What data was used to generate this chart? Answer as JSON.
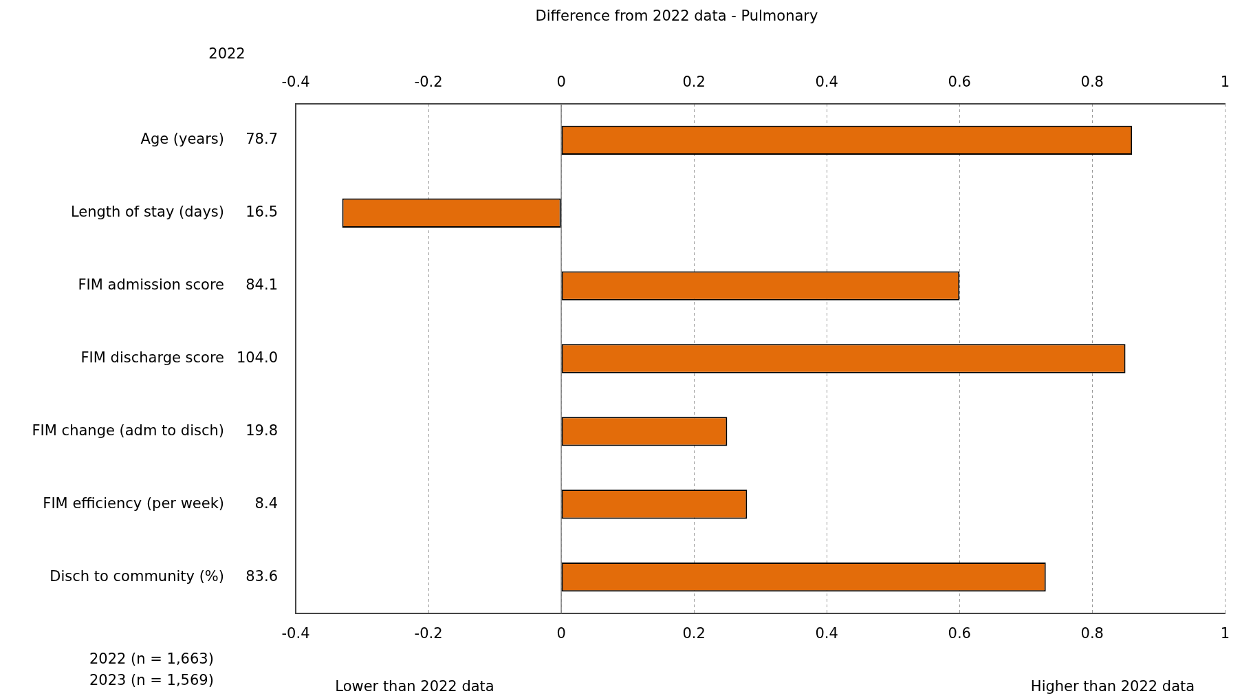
{
  "chart_data": {
    "type": "bar",
    "orientation": "horizontal",
    "title": "Difference from 2022 data - Pulmonary",
    "categories": [
      "Age (years)",
      "Length of stay (days)",
      "FIM admission score",
      "FIM discharge score",
      "FIM change (adm to disch)",
      "FIM efficiency (per week)",
      "Disch to community (%)"
    ],
    "values": [
      0.86,
      -0.33,
      0.6,
      0.85,
      0.25,
      0.28,
      0.73
    ],
    "color": "#e36c0a",
    "xlim": [
      -0.4,
      1
    ],
    "xticks": [
      -0.4,
      -0.2,
      0,
      0.2,
      0.4,
      0.6,
      0.8,
      1
    ],
    "x2lim": [
      -0.4,
      1
    ],
    "x2ticks": [
      -0.4,
      -0.2,
      0,
      0.2,
      0.4,
      0.6,
      0.8,
      1
    ],
    "grid": "x",
    "legend": false,
    "ref_lines": [
      {
        "axis": "x",
        "value": 0,
        "color": "#808080"
      }
    ],
    "annotations": [
      "2022",
      "78.7",
      "16.5",
      "84.1",
      "104.0",
      "19.8",
      "8.4",
      "83.6",
      "2022 (n = 1,663)",
      "2023 (n = 1,569)",
      "Lower than 2022 data",
      "Higher than 2022 data"
    ]
  }
}
